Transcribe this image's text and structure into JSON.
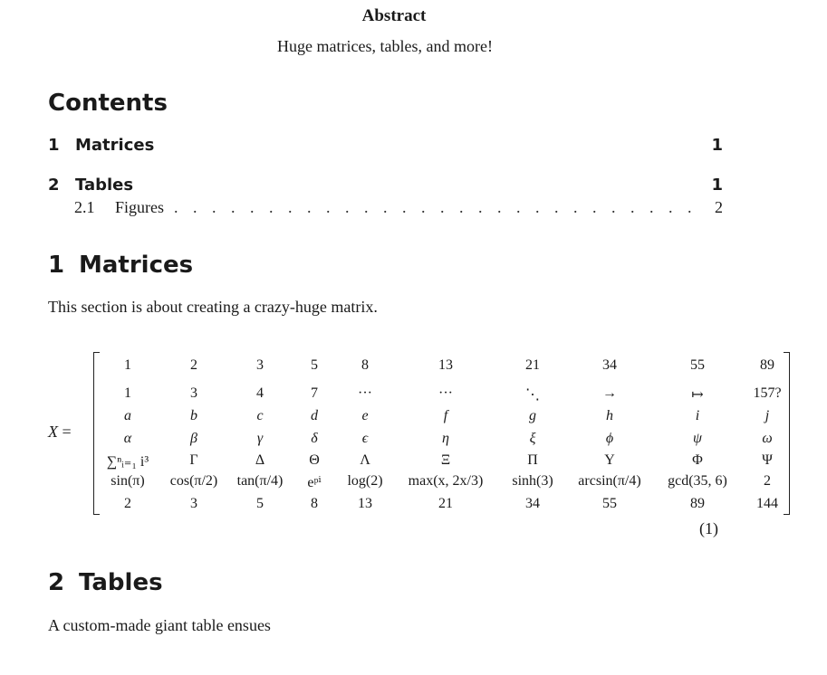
{
  "abstract": {
    "title": "Abstract",
    "body": "Huge matrices, tables, and more!"
  },
  "contents": {
    "heading": "Contents",
    "entries": [
      {
        "num": "1",
        "label": "Matrices",
        "page": "1"
      },
      {
        "num": "2",
        "label": "Tables",
        "page": "1"
      }
    ],
    "sub_entries": [
      {
        "num": "2.1",
        "label": "Figures",
        "dots": ". . . . . . . . . . . . . . . . . . . . . . . . . . . . . . . . . . . . . . . . . . . . . . . . . .",
        "page": "2"
      }
    ]
  },
  "section1": {
    "num": "1",
    "title": "Matrices",
    "text": "This section is about creating a crazy-huge matrix."
  },
  "matrix": {
    "lhs": "X",
    "eq": "=",
    "rows": [
      [
        "1",
        "2",
        "3",
        "5",
        "8",
        "13",
        "21",
        "34",
        "55",
        "89"
      ],
      [
        "1",
        "3",
        "4",
        "7",
        "···",
        "···",
        "⋱",
        "→",
        "↦",
        "157?"
      ],
      [
        "a",
        "b",
        "c",
        "d",
        "e",
        "f",
        "g",
        "h",
        "i",
        "j"
      ],
      [
        "α",
        "β",
        "γ",
        "δ",
        "ϵ",
        "η",
        "ξ",
        "ϕ",
        "ψ",
        "ω"
      ],
      [
        "∑ⁿᵢ₌₁ i³",
        "Γ",
        "Δ",
        "Θ",
        "Λ",
        "Ξ",
        "Π",
        "Υ",
        "Φ",
        "Ψ"
      ],
      [
        "sin(π)",
        "cos(π/2)",
        "tan(π/4)",
        "eᵖⁱ",
        "log(2)",
        "max(x, 2x/3)",
        "sinh(3)",
        "arcsin(π/4)",
        "gcd(35, 6)",
        "2"
      ],
      [
        "2",
        "3",
        "5",
        "8",
        "13",
        "21",
        "34",
        "55",
        "89",
        "144"
      ]
    ],
    "equation_number": "(1)"
  },
  "section2": {
    "num": "2",
    "title": "Tables",
    "text": "A custom-made giant table ensues"
  }
}
